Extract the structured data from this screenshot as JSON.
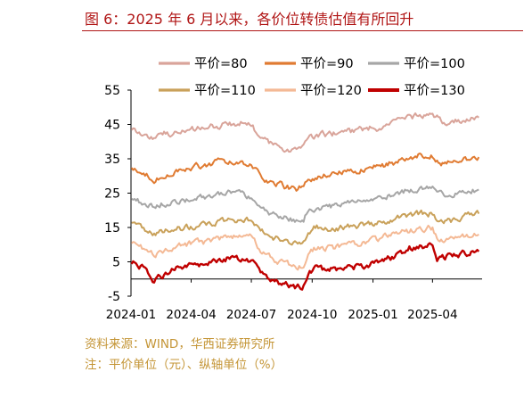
{
  "title": "图 6：2025 年 6 月以来，各价位转债估值有所回升",
  "footer": {
    "source": "资料来源：WIND，华西证券研究所",
    "note": "注：平价单位（元）、纵轴单位（%）"
  },
  "chart_data": {
    "type": "line",
    "ylim": [
      -5,
      55
    ],
    "yticks": [
      "55",
      "45",
      "35",
      "25",
      "15",
      "5",
      "-5"
    ],
    "xlim": [
      "2024-01-01",
      "2025-06-15"
    ],
    "xticks": [
      "2024-01",
      "2024-04",
      "2024-07",
      "2024-10",
      "2025-01",
      "2025-04"
    ],
    "legend_position": "top",
    "series": [
      {
        "name": "平价=80",
        "color": "#d9a49a",
        "x": [
          "2024-01-02",
          "2024-01-20",
          "2024-02-05",
          "2024-02-20",
          "2024-03-05",
          "2024-03-25",
          "2024-04-15",
          "2024-05-05",
          "2024-05-25",
          "2024-06-15",
          "2024-07-01",
          "2024-07-15",
          "2024-08-01",
          "2024-08-20",
          "2024-09-05",
          "2024-09-18",
          "2024-09-25",
          "2024-10-08",
          "2024-10-25",
          "2024-11-15",
          "2024-12-05",
          "2024-12-25",
          "2025-01-15",
          "2025-02-05",
          "2025-02-25",
          "2025-03-15",
          "2025-04-01",
          "2025-04-08",
          "2025-04-20",
          "2025-05-10",
          "2025-05-25",
          "2025-06-10"
        ],
        "y": [
          44,
          42,
          41,
          42.5,
          42,
          43,
          44,
          44.5,
          45,
          45.5,
          45,
          41,
          39,
          38,
          37.5,
          38.5,
          41,
          42,
          42,
          43,
          43,
          44,
          44,
          46,
          47,
          47.5,
          48,
          47,
          45.5,
          46,
          46.5,
          47
        ]
      },
      {
        "name": "平价=90",
        "color": "#e07b32",
        "x": [
          "2024-01-02",
          "2024-01-20",
          "2024-02-05",
          "2024-02-20",
          "2024-03-05",
          "2024-03-25",
          "2024-04-15",
          "2024-05-05",
          "2024-05-25",
          "2024-06-15",
          "2024-07-01",
          "2024-07-15",
          "2024-08-01",
          "2024-08-20",
          "2024-09-05",
          "2024-09-18",
          "2024-09-25",
          "2024-10-08",
          "2024-10-25",
          "2024-11-15",
          "2024-12-05",
          "2024-12-25",
          "2025-01-15",
          "2025-02-05",
          "2025-02-25",
          "2025-03-15",
          "2025-04-01",
          "2025-04-08",
          "2025-04-20",
          "2025-05-10",
          "2025-05-25",
          "2025-06-10"
        ],
        "y": [
          33,
          31,
          29,
          30.5,
          31,
          32,
          33,
          34,
          34.5,
          34,
          33.5,
          30,
          28,
          27,
          26,
          27,
          29,
          30,
          30,
          31,
          31,
          32,
          33,
          34,
          35.5,
          36,
          36,
          34.5,
          33.5,
          34.5,
          35,
          35.5
        ]
      },
      {
        "name": "平价=100",
        "color": "#a6a6a6",
        "x": [
          "2024-01-02",
          "2024-01-20",
          "2024-02-05",
          "2024-02-20",
          "2024-03-05",
          "2024-03-25",
          "2024-04-15",
          "2024-05-05",
          "2024-05-25",
          "2024-06-15",
          "2024-07-01",
          "2024-07-15",
          "2024-08-01",
          "2024-08-20",
          "2024-09-05",
          "2024-09-18",
          "2024-09-25",
          "2024-10-08",
          "2024-10-25",
          "2024-11-15",
          "2024-12-05",
          "2024-12-25",
          "2025-01-15",
          "2025-02-05",
          "2025-02-25",
          "2025-03-15",
          "2025-04-01",
          "2025-04-08",
          "2025-04-20",
          "2025-05-10",
          "2025-05-25",
          "2025-06-10"
        ],
        "y": [
          24,
          22,
          21,
          22,
          22.5,
          23,
          23.5,
          24.5,
          25,
          24.5,
          24,
          21,
          19,
          18,
          17,
          17.5,
          20,
          21,
          21,
          22,
          22,
          23,
          24,
          25,
          26,
          26.5,
          27,
          25,
          24,
          25,
          25.5,
          26
        ]
      },
      {
        "name": "平价=110",
        "color": "#c9a15a",
        "x": [
          "2024-01-02",
          "2024-01-20",
          "2024-02-05",
          "2024-02-20",
          "2024-03-05",
          "2024-03-25",
          "2024-04-15",
          "2024-05-05",
          "2024-05-25",
          "2024-06-15",
          "2024-07-01",
          "2024-07-15",
          "2024-08-01",
          "2024-08-20",
          "2024-09-05",
          "2024-09-18",
          "2024-09-25",
          "2024-10-08",
          "2024-10-25",
          "2024-11-15",
          "2024-12-05",
          "2024-12-25",
          "2025-01-15",
          "2025-02-05",
          "2025-02-25",
          "2025-03-15",
          "2025-04-01",
          "2025-04-08",
          "2025-04-20",
          "2025-05-10",
          "2025-05-25",
          "2025-06-10"
        ],
        "y": [
          17,
          15,
          13,
          14,
          14.5,
          15,
          15.5,
          16.5,
          17,
          17.5,
          17,
          14,
          12,
          11,
          10.5,
          11,
          14,
          15,
          14.5,
          15,
          15.5,
          16,
          16.5,
          17.5,
          18.5,
          19,
          19,
          17,
          16.5,
          17.5,
          18.5,
          19
        ]
      },
      {
        "name": "平价=120",
        "color": "#f4b995",
        "x": [
          "2024-01-02",
          "2024-01-20",
          "2024-02-05",
          "2024-02-20",
          "2024-03-05",
          "2024-03-25",
          "2024-04-15",
          "2024-05-05",
          "2024-05-25",
          "2024-06-15",
          "2024-07-01",
          "2024-07-15",
          "2024-08-01",
          "2024-08-20",
          "2024-09-05",
          "2024-09-18",
          "2024-09-25",
          "2024-10-08",
          "2024-10-25",
          "2024-11-15",
          "2024-12-05",
          "2024-12-25",
          "2025-01-15",
          "2025-02-05",
          "2025-02-25",
          "2025-03-15",
          "2025-04-01",
          "2025-04-08",
          "2025-04-20",
          "2025-05-10",
          "2025-05-25",
          "2025-06-10"
        ],
        "y": [
          11,
          9,
          7,
          8.5,
          9,
          10,
          10.5,
          11,
          12,
          12.5,
          12,
          8,
          6,
          4.5,
          3.5,
          4,
          8,
          9,
          9,
          9.5,
          10,
          11,
          12,
          13,
          14,
          14.5,
          15,
          12,
          11.5,
          12,
          12.5,
          13
        ]
      },
      {
        "name": "平价=130",
        "color": "#c00000",
        "x": [
          "2024-01-02",
          "2024-01-20",
          "2024-02-05",
          "2024-02-20",
          "2024-03-05",
          "2024-03-25",
          "2024-04-15",
          "2024-05-05",
          "2024-05-25",
          "2024-06-15",
          "2024-07-01",
          "2024-07-15",
          "2024-08-01",
          "2024-08-20",
          "2024-09-05",
          "2024-09-18",
          "2024-09-25",
          "2024-10-08",
          "2024-10-25",
          "2024-11-15",
          "2024-12-05",
          "2024-12-25",
          "2025-01-15",
          "2025-02-05",
          "2025-02-25",
          "2025-03-15",
          "2025-04-01",
          "2025-04-08",
          "2025-04-20",
          "2025-05-10",
          "2025-05-25",
          "2025-06-10"
        ],
        "y": [
          5,
          3,
          -1,
          1.5,
          3,
          4,
          4.5,
          5.5,
          6,
          6,
          5.5,
          2,
          0,
          -1.5,
          -2.5,
          -2,
          2,
          3,
          2.5,
          3,
          3.5,
          4,
          5,
          7,
          9,
          9.5,
          10,
          6,
          6.5,
          7,
          7.5,
          8
        ]
      }
    ]
  }
}
